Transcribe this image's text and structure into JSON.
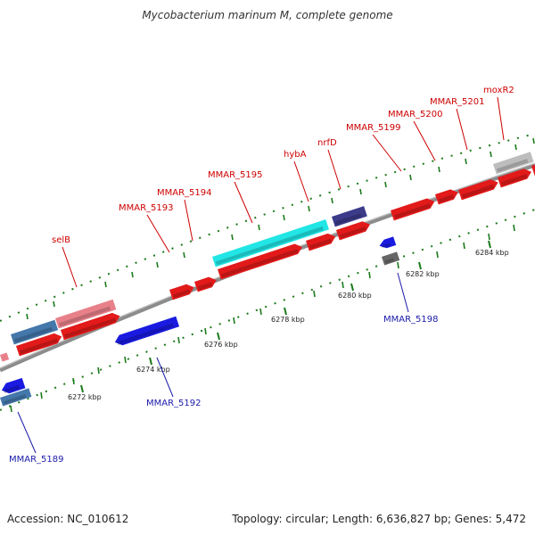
{
  "title": "Mycobacterium marinum M, complete genome",
  "footer": {
    "accession": "Accession: NC_010612",
    "summary": "Topology: circular; Length: 6,636,827 bp; Genes: 5,472"
  },
  "colors": {
    "forward_cds": "#e21a1a",
    "reverse_cds": "#1a1ae0",
    "backbone": "#8c8c8c",
    "tick": "#1b7a1b",
    "label_forward": "#cc0000",
    "label_reverse": "#1a1aaa",
    "cyan_feature": "#22e5e5",
    "purple_feature": "#3b3b8a",
    "pink_feature": "#e8808a",
    "steel_feature": "#4477aa",
    "gray_feature": "#bdbdbd",
    "dark_gray_feature": "#666666"
  },
  "ticks": [
    {
      "label": "6272 kbp"
    },
    {
      "label": "6274 kbp"
    },
    {
      "label": "6276 kbp"
    },
    {
      "label": "6278 kbp"
    },
    {
      "label": "6280 kbp"
    },
    {
      "label": "6282 kbp"
    },
    {
      "label": "6284 kbp"
    }
  ],
  "forward_labels": [
    {
      "text": "selB"
    },
    {
      "text": "MMAR_5193"
    },
    {
      "text": "MMAR_5194"
    },
    {
      "text": "MMAR_5195"
    },
    {
      "text": "hybA"
    },
    {
      "text": "nrfD"
    },
    {
      "text": "MMAR_5199"
    },
    {
      "text": "MMAR_5200"
    },
    {
      "text": "MMAR_5201"
    },
    {
      "text": "moxR2"
    }
  ],
  "reverse_labels": [
    {
      "text": "MMAR_5189"
    },
    {
      "text": "MMAR_5192"
    },
    {
      "text": "MMAR_5198"
    }
  ]
}
